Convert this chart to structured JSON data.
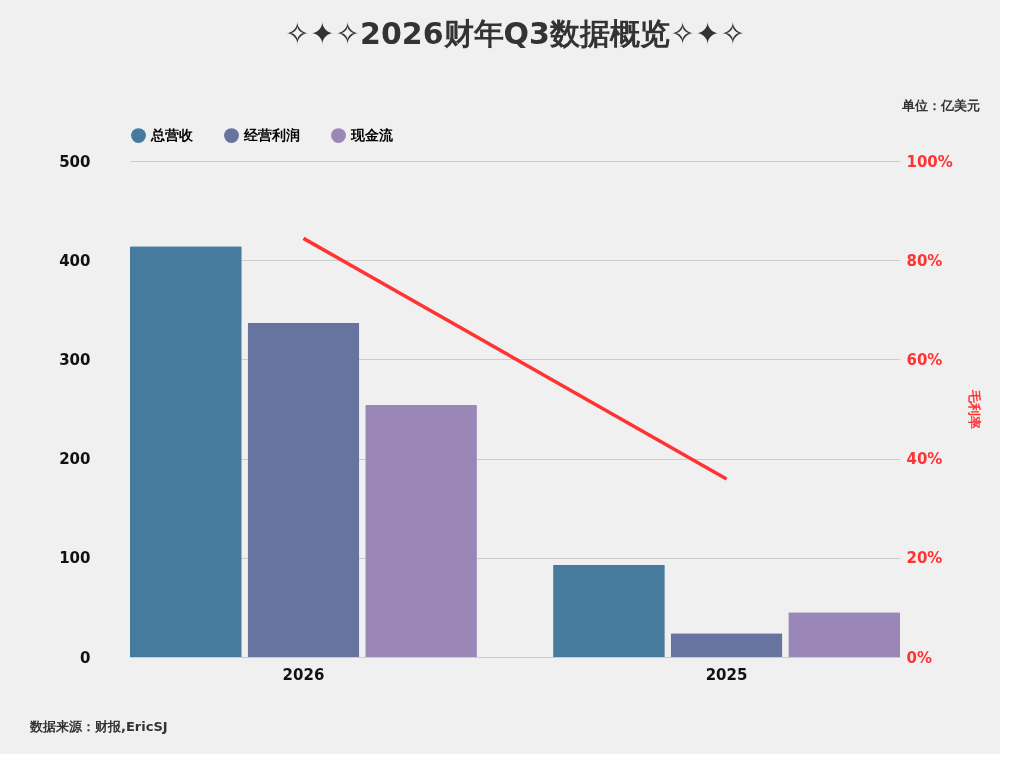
{
  "chart_data": {
    "type": "bar",
    "title": "✧✦✧2026财年Q3数据概览✧✦✧",
    "categories": [
      "2026",
      "2025"
    ],
    "series": [
      {
        "name": "总营收",
        "color": "#467b9d",
        "values": [
          414,
          93
        ]
      },
      {
        "name": "经营利润",
        "color": "#6874a0",
        "values": [
          337,
          24
        ]
      },
      {
        "name": "现金流",
        "color": "#9b87b7",
        "values": [
          254,
          45
        ]
      },
      {
        "type": "line",
        "axis": "y2",
        "color": "#ff3333",
        "values": [
          84.4,
          35.9
        ]
      }
    ],
    "ylim": [
      0,
      500
    ],
    "yticks": [
      0,
      100,
      200,
      300,
      400,
      500
    ],
    "y2lim": [
      0,
      100
    ],
    "y2ticks": [
      {
        "value": 0,
        "label": "0%"
      },
      {
        "value": 20,
        "label": "20%"
      },
      {
        "value": 40,
        "label": "40%"
      },
      {
        "value": 60,
        "label": "60%"
      },
      {
        "value": 80,
        "label": "80%"
      },
      {
        "value": 100,
        "label": "100%"
      }
    ],
    "y2label": "毛利率",
    "grid": "y",
    "legend": "top",
    "annotations": [
      "单位：亿美元",
      "数据来源：财报,EricSJ"
    ]
  }
}
